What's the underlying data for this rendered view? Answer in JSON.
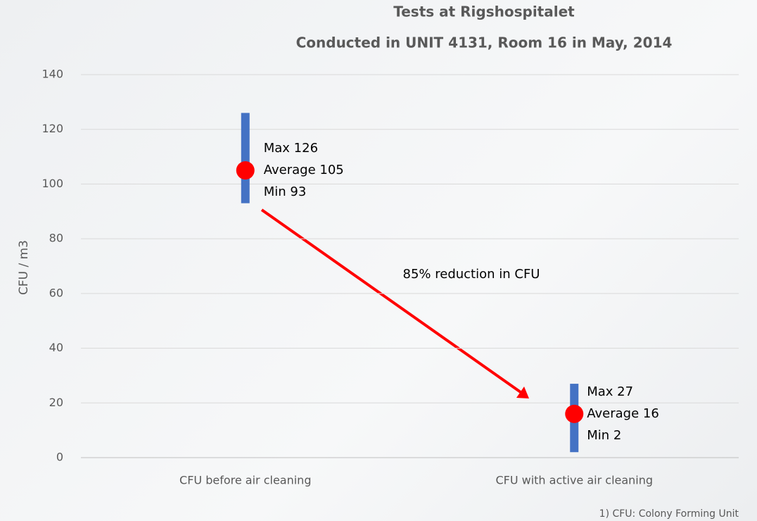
{
  "chart_data": {
    "type": "range",
    "title": "Tests at Rigshospitalet",
    "subtitle": "Conducted in UNIT 4131, Room 16 in May, 2014",
    "y_label": "CFU / m3",
    "categories": [
      "CFU before air cleaning",
      "CFU with active air cleaning"
    ],
    "max": {
      "values": [
        126,
        27
      ],
      "value_labels": [
        "Max 126",
        "Max 27"
      ]
    },
    "average": {
      "values": [
        105,
        16
      ],
      "value_labels": [
        "Average 105",
        "Average 16"
      ]
    },
    "min": {
      "values": [
        93,
        2
      ],
      "value_labels": [
        "Min 93",
        "Min 2"
      ]
    },
    "range_color": "#4472c4",
    "average_color": "#ff0000",
    "ylim": [
      0,
      140
    ],
    "yticks": [
      0,
      20,
      40,
      60,
      80,
      100,
      120,
      140
    ],
    "grid": true,
    "annotation": "85% reduction in CFU",
    "footnote": "1) CFU: Colony Forming Unit"
  }
}
